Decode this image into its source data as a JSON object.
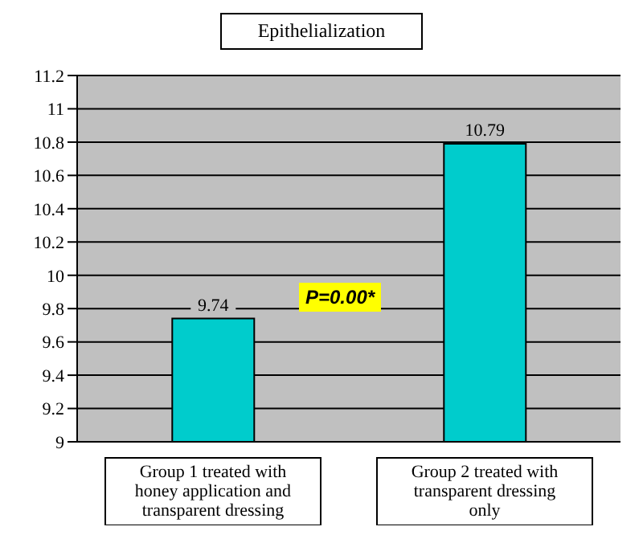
{
  "chart_data": {
    "type": "bar",
    "title": "Epithelialization",
    "categories": [
      "Group 1 treated with honey application and transparent dressing",
      "Group 2 treated with transparent dressing only"
    ],
    "values": [
      9.74,
      10.79
    ],
    "color": "#00cccc",
    "ylim": [
      9,
      11.2
    ],
    "yticks": [
      9,
      9.2,
      9.4,
      9.6,
      9.8,
      10,
      10.2,
      10.4,
      10.6,
      10.8,
      11,
      11.2
    ],
    "grid": "y",
    "data_labels": true,
    "annotations": [
      "P=0.00*"
    ]
  }
}
